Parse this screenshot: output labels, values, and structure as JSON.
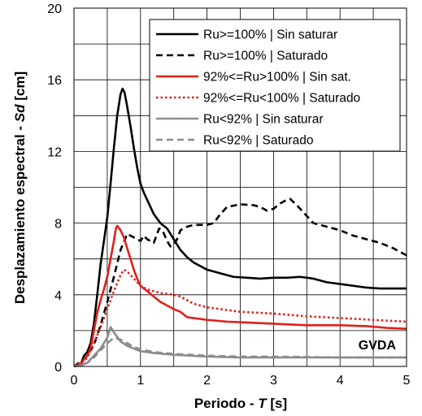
{
  "chart_data": {
    "type": "line",
    "xlabel_prefix": "Periodo - ",
    "xlabel_var": "T",
    "xlabel_unit": " [s]",
    "ylabel_prefix": "Desplazamiento espectral - ",
    "ylabel_var": "Sd",
    "ylabel_unit": " [cm]",
    "xlim": [
      0,
      5
    ],
    "ylim": [
      0,
      20
    ],
    "xticks": [
      0,
      1,
      2,
      3,
      4,
      5
    ],
    "yticks": [
      0,
      4,
      8,
      12,
      16,
      20
    ],
    "xgrid_step": 0.5,
    "ygrid_step": 2,
    "grid": true,
    "legend_position": "top-right",
    "annotation": "GVDA",
    "series": [
      {
        "name": "Ru>=100% | Sin saturar",
        "color": "#000000",
        "dash": "solid",
        "points": [
          [
            0,
            0
          ],
          [
            0.1,
            0.1
          ],
          [
            0.15,
            0.6
          ],
          [
            0.2,
            0.8
          ],
          [
            0.25,
            1.3
          ],
          [
            0.3,
            2.4
          ],
          [
            0.35,
            4.0
          ],
          [
            0.4,
            5.7
          ],
          [
            0.45,
            7.0
          ],
          [
            0.5,
            8.3
          ],
          [
            0.55,
            10.2
          ],
          [
            0.6,
            12.2
          ],
          [
            0.65,
            14.0
          ],
          [
            0.7,
            15.2
          ],
          [
            0.73,
            15.5
          ],
          [
            0.76,
            15.3
          ],
          [
            0.8,
            14.5
          ],
          [
            0.85,
            13.4
          ],
          [
            0.9,
            12.2
          ],
          [
            0.95,
            11.1
          ],
          [
            1.0,
            10.2
          ],
          [
            1.05,
            9.7
          ],
          [
            1.1,
            9.3
          ],
          [
            1.15,
            8.9
          ],
          [
            1.2,
            8.5
          ],
          [
            1.3,
            8.0
          ],
          [
            1.4,
            7.7
          ],
          [
            1.5,
            7.1
          ],
          [
            1.6,
            6.5
          ],
          [
            1.7,
            6.1
          ],
          [
            1.8,
            5.8
          ],
          [
            2.0,
            5.4
          ],
          [
            2.2,
            5.2
          ],
          [
            2.4,
            5.0
          ],
          [
            2.6,
            4.95
          ],
          [
            2.8,
            4.9
          ],
          [
            3.0,
            4.95
          ],
          [
            3.2,
            4.95
          ],
          [
            3.4,
            5.0
          ],
          [
            3.6,
            4.9
          ],
          [
            3.8,
            4.7
          ],
          [
            4.0,
            4.6
          ],
          [
            4.2,
            4.5
          ],
          [
            4.4,
            4.4
          ],
          [
            4.6,
            4.35
          ],
          [
            5.0,
            4.35
          ]
        ]
      },
      {
        "name": "Ru>=100% | Saturado",
        "color": "#000000",
        "dash": "dashed",
        "points": [
          [
            0,
            0
          ],
          [
            0.15,
            0.4
          ],
          [
            0.2,
            0.6
          ],
          [
            0.3,
            1.2
          ],
          [
            0.4,
            2.3
          ],
          [
            0.5,
            3.6
          ],
          [
            0.6,
            5.0
          ],
          [
            0.7,
            6.5
          ],
          [
            0.8,
            7.4
          ],
          [
            0.9,
            7.2
          ],
          [
            1.0,
            7.0
          ],
          [
            1.05,
            7.3
          ],
          [
            1.1,
            7.1
          ],
          [
            1.2,
            6.9
          ],
          [
            1.28,
            7.7
          ],
          [
            1.33,
            7.6
          ],
          [
            1.4,
            7.0
          ],
          [
            1.45,
            6.7
          ],
          [
            1.5,
            6.8
          ],
          [
            1.55,
            7.1
          ],
          [
            1.6,
            7.6
          ],
          [
            1.7,
            7.8
          ],
          [
            1.8,
            7.9
          ],
          [
            2.0,
            7.9
          ],
          [
            2.1,
            8.0
          ],
          [
            2.2,
            8.5
          ],
          [
            2.3,
            8.9
          ],
          [
            2.5,
            9.05
          ],
          [
            2.7,
            9.0
          ],
          [
            2.8,
            8.9
          ],
          [
            2.9,
            8.7
          ],
          [
            3.0,
            8.8
          ],
          [
            3.1,
            9.1
          ],
          [
            3.2,
            9.3
          ],
          [
            3.25,
            9.35
          ],
          [
            3.35,
            9.0
          ],
          [
            3.5,
            8.4
          ],
          [
            3.6,
            8.0
          ],
          [
            3.8,
            7.8
          ],
          [
            4.0,
            7.6
          ],
          [
            4.2,
            7.3
          ],
          [
            4.4,
            7.1
          ],
          [
            4.6,
            6.9
          ],
          [
            4.8,
            6.6
          ],
          [
            5.0,
            6.2
          ]
        ]
      },
      {
        "name": "92%<=Ru>100% | Sin sat.",
        "color": "#e0201a",
        "dash": "solid",
        "points": [
          [
            0,
            0
          ],
          [
            0.1,
            0.1
          ],
          [
            0.15,
            0.4
          ],
          [
            0.2,
            0.6
          ],
          [
            0.25,
            1.0
          ],
          [
            0.3,
            2.0
          ],
          [
            0.35,
            3.0
          ],
          [
            0.4,
            3.7
          ],
          [
            0.45,
            4.3
          ],
          [
            0.5,
            5.0
          ],
          [
            0.55,
            6.0
          ],
          [
            0.6,
            7.0
          ],
          [
            0.63,
            7.7
          ],
          [
            0.65,
            7.85
          ],
          [
            0.7,
            7.6
          ],
          [
            0.75,
            7.2
          ],
          [
            0.8,
            6.6
          ],
          [
            0.85,
            6.0
          ],
          [
            0.9,
            5.4
          ],
          [
            0.95,
            4.9
          ],
          [
            1.0,
            4.5
          ],
          [
            1.1,
            4.2
          ],
          [
            1.2,
            3.9
          ],
          [
            1.3,
            3.6
          ],
          [
            1.4,
            3.4
          ],
          [
            1.5,
            3.2
          ],
          [
            1.6,
            3.05
          ],
          [
            1.7,
            2.75
          ],
          [
            2.0,
            2.6
          ],
          [
            2.3,
            2.5
          ],
          [
            2.6,
            2.45
          ],
          [
            2.9,
            2.4
          ],
          [
            3.2,
            2.35
          ],
          [
            3.5,
            2.3
          ],
          [
            4.0,
            2.3
          ],
          [
            4.4,
            2.25
          ],
          [
            4.7,
            2.15
          ],
          [
            5.0,
            2.1
          ]
        ]
      },
      {
        "name": "92%<=Ru<100% | Saturado",
        "color": "#e0201a",
        "dash": "dotted",
        "points": [
          [
            0,
            0
          ],
          [
            0.15,
            0.3
          ],
          [
            0.2,
            0.5
          ],
          [
            0.3,
            1.3
          ],
          [
            0.4,
            2.2
          ],
          [
            0.5,
            3.2
          ],
          [
            0.6,
            4.2
          ],
          [
            0.7,
            5.1
          ],
          [
            0.75,
            5.4
          ],
          [
            0.8,
            5.3
          ],
          [
            0.9,
            4.9
          ],
          [
            1.0,
            4.5
          ],
          [
            1.1,
            4.3
          ],
          [
            1.2,
            4.2
          ],
          [
            1.3,
            4.1
          ],
          [
            1.4,
            4.05
          ],
          [
            1.5,
            4.0
          ],
          [
            1.6,
            3.9
          ],
          [
            1.7,
            3.7
          ],
          [
            1.8,
            3.5
          ],
          [
            2.0,
            3.3
          ],
          [
            2.2,
            3.2
          ],
          [
            2.5,
            3.05
          ],
          [
            3.0,
            2.95
          ],
          [
            3.5,
            2.8
          ],
          [
            4.0,
            2.7
          ],
          [
            4.5,
            2.6
          ],
          [
            5.0,
            2.5
          ]
        ]
      },
      {
        "name": "Ru<92% | Sin saturar",
        "color": "#8c8c8c",
        "dash": "solid",
        "points": [
          [
            0,
            0
          ],
          [
            0.1,
            0.05
          ],
          [
            0.2,
            0.2
          ],
          [
            0.3,
            0.6
          ],
          [
            0.4,
            1.0
          ],
          [
            0.5,
            1.6
          ],
          [
            0.55,
            2.2
          ],
          [
            0.6,
            1.9
          ],
          [
            0.7,
            1.4
          ],
          [
            0.8,
            1.15
          ],
          [
            0.9,
            1.0
          ],
          [
            1.0,
            0.85
          ],
          [
            1.2,
            0.75
          ],
          [
            1.5,
            0.65
          ],
          [
            2.0,
            0.55
          ],
          [
            2.5,
            0.5
          ],
          [
            3.0,
            0.5
          ],
          [
            4.0,
            0.5
          ],
          [
            5.0,
            0.5
          ]
        ]
      },
      {
        "name": "Ru<92% | Saturado",
        "color": "#8c8c8c",
        "dash": "dashed",
        "points": [
          [
            0,
            0
          ],
          [
            0.1,
            0.05
          ],
          [
            0.2,
            0.2
          ],
          [
            0.3,
            0.5
          ],
          [
            0.4,
            0.9
          ],
          [
            0.5,
            1.3
          ],
          [
            0.6,
            1.6
          ],
          [
            0.7,
            1.5
          ],
          [
            0.8,
            1.3
          ],
          [
            0.9,
            1.1
          ],
          [
            1.0,
            0.95
          ],
          [
            1.2,
            0.8
          ],
          [
            1.5,
            0.7
          ],
          [
            2.0,
            0.6
          ],
          [
            2.5,
            0.55
          ],
          [
            3.0,
            0.55
          ],
          [
            4.0,
            0.5
          ],
          [
            5.0,
            0.5
          ]
        ]
      }
    ]
  }
}
